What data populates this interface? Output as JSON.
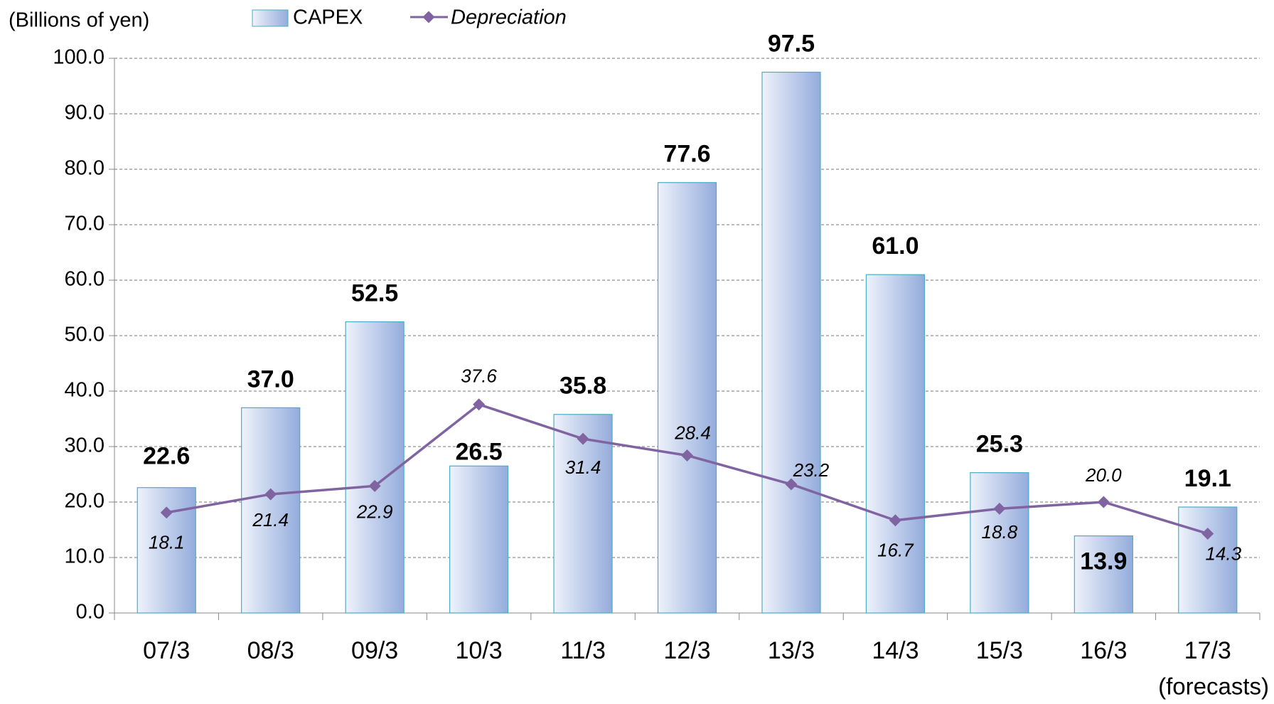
{
  "chart_data": {
    "type": "bar_line",
    "y_axis_label": "(Billions of yen)",
    "annotation": "(forecasts)",
    "categories": [
      "07/3",
      "08/3",
      "09/3",
      "10/3",
      "11/3",
      "12/3",
      "13/3",
      "14/3",
      "15/3",
      "16/3",
      "17/3"
    ],
    "series": [
      {
        "name": "CAPEX",
        "type": "bar",
        "color": "#94acdc",
        "values": [
          22.6,
          37.0,
          52.5,
          26.5,
          35.8,
          77.6,
          97.5,
          61.0,
          25.3,
          13.9,
          19.1
        ],
        "value_labels": [
          "22.6",
          "37.0",
          "52.5",
          "26.5",
          "35.8",
          "77.6",
          "97.5",
          "61.0",
          "25.3",
          "13.9",
          "19.1"
        ]
      },
      {
        "name": "Depreciation",
        "type": "line",
        "color": "#8064a2",
        "values": [
          18.1,
          21.4,
          22.9,
          37.6,
          31.4,
          28.4,
          23.2,
          16.7,
          18.8,
          20.0,
          14.3
        ],
        "value_labels": [
          "18.1",
          "21.4",
          "22.9",
          "37.6",
          "31.4",
          "28.4",
          "23.2",
          "16.7",
          "18.8",
          "20.0",
          "14.3"
        ]
      }
    ],
    "ylim": [
      0,
      100
    ],
    "yticks": [
      {
        "value": 0,
        "label": "0.0"
      },
      {
        "value": 10,
        "label": "10.0"
      },
      {
        "value": 20,
        "label": "20.0"
      },
      {
        "value": 30,
        "label": "30.0"
      },
      {
        "value": 40,
        "label": "40.0"
      },
      {
        "value": 50,
        "label": "50.0"
      },
      {
        "value": 60,
        "label": "60.0"
      },
      {
        "value": 70,
        "label": "70.0"
      },
      {
        "value": 80,
        "label": "80.0"
      },
      {
        "value": 90,
        "label": "90.0"
      },
      {
        "value": 100,
        "label": "100.0"
      }
    ],
    "grid": true
  }
}
